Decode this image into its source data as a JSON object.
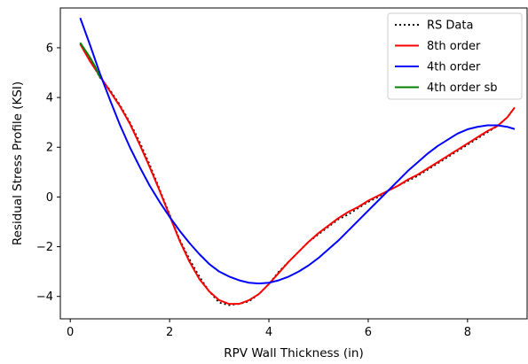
{
  "chart_data": {
    "type": "line",
    "title": "",
    "xlabel": "RPV Wall Thickness (in)",
    "ylabel": "Residual Stress Profile (KSI)",
    "xlim": [
      -0.2,
      9.2
    ],
    "ylim": [
      -4.9,
      7.6
    ],
    "xticks": [
      0,
      2,
      4,
      6,
      8
    ],
    "yticks": [
      -4,
      -2,
      0,
      2,
      4,
      6
    ],
    "xtick_labels": [
      "0",
      "2",
      "4",
      "6",
      "8"
    ],
    "ytick_labels": [
      "−4",
      "−2",
      "0",
      "2",
      "4",
      "6"
    ],
    "grid": false,
    "legend_position": "top-right",
    "series": [
      {
        "name": "RS Data",
        "color": "#000000",
        "style": "dotted",
        "points": [
          [
            0.2,
            6.2
          ],
          [
            0.4,
            5.5
          ],
          [
            0.6,
            4.8
          ],
          [
            0.8,
            4.3
          ],
          [
            1.0,
            3.7
          ],
          [
            1.2,
            3.0
          ],
          [
            1.4,
            2.2
          ],
          [
            1.6,
            1.3
          ],
          [
            1.8,
            0.3
          ],
          [
            2.0,
            -0.7
          ],
          [
            2.2,
            -1.7
          ],
          [
            2.4,
            -2.5
          ],
          [
            2.6,
            -3.2
          ],
          [
            2.8,
            -3.8
          ],
          [
            3.0,
            -4.25
          ],
          [
            3.2,
            -4.35
          ],
          [
            3.4,
            -4.3
          ],
          [
            3.6,
            -4.2
          ],
          [
            3.8,
            -3.9
          ],
          [
            4.0,
            -3.5
          ],
          [
            4.2,
            -3.0
          ],
          [
            4.4,
            -2.6
          ],
          [
            4.6,
            -2.2
          ],
          [
            4.8,
            -1.8
          ],
          [
            5.0,
            -1.5
          ],
          [
            5.2,
            -1.2
          ],
          [
            5.4,
            -0.9
          ],
          [
            5.6,
            -0.7
          ],
          [
            5.8,
            -0.45
          ],
          [
            6.0,
            -0.2
          ],
          [
            6.2,
            0.0
          ],
          [
            6.4,
            0.25
          ],
          [
            6.6,
            0.45
          ],
          [
            6.8,
            0.65
          ],
          [
            7.0,
            0.85
          ],
          [
            7.2,
            1.1
          ],
          [
            7.4,
            1.35
          ],
          [
            7.6,
            1.6
          ],
          [
            7.8,
            1.85
          ],
          [
            8.0,
            2.1
          ],
          [
            8.2,
            2.35
          ],
          [
            8.4,
            2.6
          ],
          [
            8.6,
            2.85
          ],
          [
            8.8,
            3.2
          ],
          [
            8.95,
            3.6
          ]
        ]
      },
      {
        "name": "8th order",
        "color": "#ff0000",
        "style": "solid",
        "points": [
          [
            0.2,
            6.15
          ],
          [
            0.4,
            5.45
          ],
          [
            0.6,
            4.85
          ],
          [
            0.8,
            4.25
          ],
          [
            1.0,
            3.65
          ],
          [
            1.2,
            2.95
          ],
          [
            1.4,
            2.1
          ],
          [
            1.6,
            1.2
          ],
          [
            1.8,
            0.25
          ],
          [
            2.0,
            -0.75
          ],
          [
            2.2,
            -1.75
          ],
          [
            2.4,
            -2.6
          ],
          [
            2.6,
            -3.3
          ],
          [
            2.8,
            -3.8
          ],
          [
            3.0,
            -4.15
          ],
          [
            3.2,
            -4.3
          ],
          [
            3.4,
            -4.3
          ],
          [
            3.6,
            -4.15
          ],
          [
            3.8,
            -3.9
          ],
          [
            4.0,
            -3.5
          ],
          [
            4.2,
            -3.05
          ],
          [
            4.4,
            -2.6
          ],
          [
            4.6,
            -2.2
          ],
          [
            4.8,
            -1.8
          ],
          [
            5.0,
            -1.45
          ],
          [
            5.2,
            -1.15
          ],
          [
            5.4,
            -0.85
          ],
          [
            5.6,
            -0.6
          ],
          [
            5.8,
            -0.4
          ],
          [
            6.0,
            -0.15
          ],
          [
            6.2,
            0.05
          ],
          [
            6.4,
            0.25
          ],
          [
            6.6,
            0.45
          ],
          [
            6.8,
            0.7
          ],
          [
            7.0,
            0.9
          ],
          [
            7.2,
            1.15
          ],
          [
            7.4,
            1.4
          ],
          [
            7.6,
            1.65
          ],
          [
            7.8,
            1.9
          ],
          [
            8.0,
            2.15
          ],
          [
            8.2,
            2.4
          ],
          [
            8.4,
            2.65
          ],
          [
            8.6,
            2.85
          ],
          [
            8.8,
            3.2
          ],
          [
            8.95,
            3.6
          ]
        ]
      },
      {
        "name": "4th order",
        "color": "#0000ff",
        "style": "solid",
        "points": [
          [
            0.2,
            7.2
          ],
          [
            0.4,
            6.1
          ],
          [
            0.6,
            4.95
          ],
          [
            0.8,
            3.9
          ],
          [
            1.0,
            2.9
          ],
          [
            1.2,
            2.0
          ],
          [
            1.4,
            1.2
          ],
          [
            1.6,
            0.45
          ],
          [
            1.8,
            -0.2
          ],
          [
            2.0,
            -0.8
          ],
          [
            2.2,
            -1.35
          ],
          [
            2.4,
            -1.85
          ],
          [
            2.6,
            -2.3
          ],
          [
            2.8,
            -2.7
          ],
          [
            3.0,
            -3.0
          ],
          [
            3.2,
            -3.2
          ],
          [
            3.4,
            -3.35
          ],
          [
            3.6,
            -3.45
          ],
          [
            3.8,
            -3.48
          ],
          [
            4.0,
            -3.45
          ],
          [
            4.2,
            -3.35
          ],
          [
            4.4,
            -3.2
          ],
          [
            4.6,
            -3.0
          ],
          [
            4.8,
            -2.75
          ],
          [
            5.0,
            -2.45
          ],
          [
            5.2,
            -2.1
          ],
          [
            5.4,
            -1.75
          ],
          [
            5.6,
            -1.35
          ],
          [
            5.8,
            -0.95
          ],
          [
            6.0,
            -0.55
          ],
          [
            6.2,
            -0.15
          ],
          [
            6.4,
            0.25
          ],
          [
            6.6,
            0.65
          ],
          [
            6.8,
            1.05
          ],
          [
            7.0,
            1.4
          ],
          [
            7.2,
            1.75
          ],
          [
            7.4,
            2.05
          ],
          [
            7.6,
            2.3
          ],
          [
            7.8,
            2.55
          ],
          [
            8.0,
            2.72
          ],
          [
            8.2,
            2.82
          ],
          [
            8.4,
            2.88
          ],
          [
            8.6,
            2.88
          ],
          [
            8.8,
            2.82
          ],
          [
            8.95,
            2.73
          ]
        ]
      },
      {
        "name": "4th order sb",
        "color": "#008000",
        "style": "solid",
        "points": [
          [
            0.2,
            6.2
          ],
          [
            0.3,
            5.9
          ],
          [
            0.4,
            5.6
          ],
          [
            0.5,
            5.25
          ],
          [
            0.6,
            4.8
          ]
        ]
      }
    ]
  }
}
